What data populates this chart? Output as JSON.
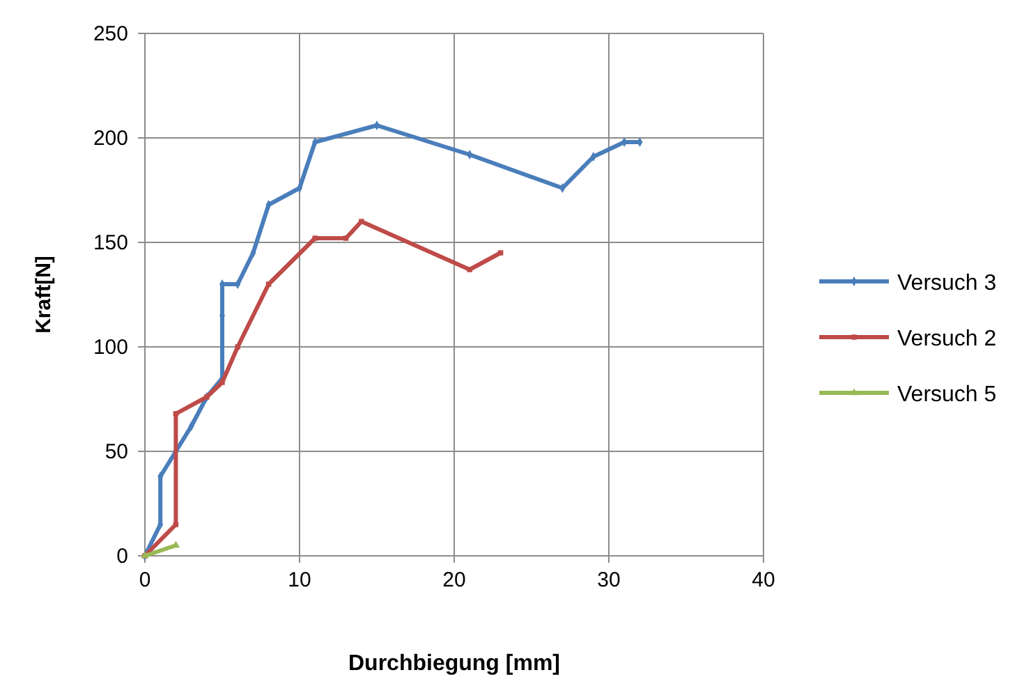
{
  "chart_data": {
    "type": "line",
    "xlabel": "Durchbiegung [mm]",
    "ylabel": "Kraft[N]",
    "xlim": [
      0,
      40
    ],
    "xticks": [
      0,
      10,
      20,
      30,
      40
    ],
    "ylim": [
      0,
      250
    ],
    "yticks": [
      0,
      50,
      100,
      150,
      200,
      250
    ],
    "grid": true,
    "legend": "right",
    "line_style": "solid",
    "series": [
      {
        "name": "Versuch 3",
        "color": "#4a7ebb",
        "marker": "diamond",
        "x": [
          0,
          1,
          1,
          2,
          3,
          4,
          5,
          5,
          5,
          6,
          7,
          8,
          10,
          11,
          15,
          21,
          27,
          29,
          31,
          32
        ],
        "values": [
          0,
          15,
          38,
          50,
          62,
          76,
          85,
          115,
          130,
          130,
          145,
          168,
          176,
          198,
          206,
          192,
          176,
          191,
          198,
          198
        ]
      },
      {
        "name": "Versuch 2",
        "color": "#be4b48",
        "marker": "square",
        "x": [
          0,
          2,
          2,
          4,
          5,
          6,
          8,
          11,
          13,
          14,
          21,
          23
        ],
        "values": [
          0,
          15,
          68,
          76,
          83,
          100,
          130,
          152,
          152,
          160,
          137,
          145
        ]
      },
      {
        "name": "Versuch 5",
        "color": "#98b954",
        "marker": "triangle",
        "x": [
          0,
          2
        ],
        "values": [
          0,
          5
        ]
      }
    ]
  }
}
